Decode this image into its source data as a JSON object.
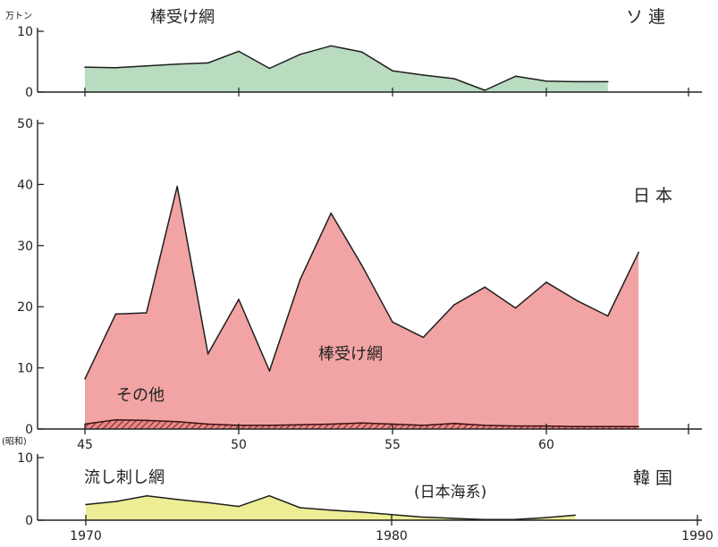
{
  "chart_data": [
    {
      "type": "area",
      "title": "ソ 連",
      "ylabel": "万トン",
      "ylim": [
        0,
        10
      ],
      "yticks": [
        0,
        10
      ],
      "series": [
        {
          "name": "棒受け網",
          "x": [
            45,
            46,
            47,
            48,
            49,
            50,
            51,
            52,
            53,
            54,
            55,
            56,
            57,
            58,
            59,
            60,
            61,
            62
          ],
          "values": [
            4.1,
            4.0,
            4.3,
            4.6,
            4.8,
            6.7,
            3.9,
            6.2,
            7.6,
            6.6,
            3.5,
            2.8,
            2.2,
            0.3,
            2.6,
            1.8,
            1.7,
            1.7
          ],
          "color": "#b9dcc1"
        }
      ]
    },
    {
      "type": "area",
      "title": "日 本",
      "ylim": [
        0,
        50
      ],
      "yticks": [
        0,
        10,
        20,
        30,
        40,
        50
      ],
      "xlabel_prefix": "(昭和)",
      "xticks": [
        45,
        50,
        55,
        60
      ],
      "series": [
        {
          "name": "棒受け網",
          "x": [
            45,
            46,
            47,
            48,
            49,
            50,
            51,
            52,
            53,
            54,
            55,
            56,
            57,
            58,
            59,
            60,
            61,
            62,
            63
          ],
          "values": [
            8.2,
            18.8,
            19.0,
            39.7,
            12.3,
            21.2,
            9.5,
            24.5,
            35.3,
            26.8,
            17.5,
            15.0,
            20.3,
            23.2,
            19.8,
            24.0,
            21.0,
            18.5,
            28.9
          ],
          "color": "#f2a3a3"
        },
        {
          "name": "その他",
          "x": [
            45,
            46,
            47,
            48,
            49,
            50,
            51,
            52,
            53,
            54,
            55,
            56,
            57,
            58,
            59,
            60,
            61,
            62,
            63
          ],
          "values": [
            0.8,
            1.5,
            1.4,
            1.2,
            0.8,
            0.6,
            0.6,
            0.7,
            0.8,
            1.0,
            0.8,
            0.6,
            0.9,
            0.6,
            0.5,
            0.5,
            0.4,
            0.4,
            0.4
          ],
          "color": "#b23b3b",
          "pattern": "hatched"
        }
      ]
    },
    {
      "type": "area",
      "title": "韓 国",
      "subtitle": "(日本海系)",
      "ylim": [
        0,
        10
      ],
      "yticks": [
        0,
        10
      ],
      "xticks": [
        1970,
        1980,
        1990
      ],
      "series": [
        {
          "name": "流し刺し網",
          "x": [
            1970,
            1971,
            1972,
            1973,
            1974,
            1975,
            1976,
            1977,
            1978,
            1979,
            1980,
            1981,
            1982,
            1983,
            1984,
            1985,
            1986
          ],
          "values": [
            2.5,
            3.0,
            3.9,
            3.3,
            2.8,
            2.2,
            3.9,
            2.0,
            1.6,
            1.3,
            0.9,
            0.5,
            0.3,
            0.1,
            0.1,
            0.4,
            0.8
          ],
          "color": "#eded96"
        }
      ]
    }
  ]
}
